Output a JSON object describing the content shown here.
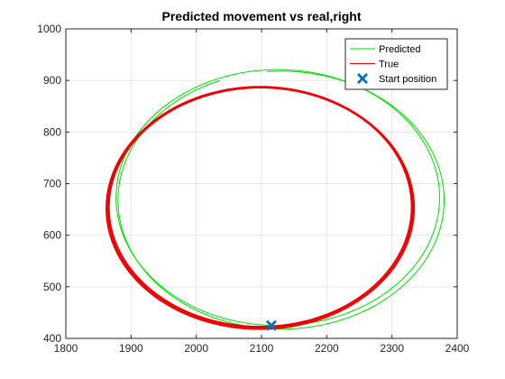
{
  "chart_data": {
    "type": "line",
    "title": "Predicted movement vs real,right",
    "xlabel": "",
    "ylabel": "",
    "xlim": [
      1800,
      2400
    ],
    "ylim": [
      400,
      1000
    ],
    "xticks": [
      1800,
      1900,
      2000,
      2100,
      2200,
      2300,
      2400
    ],
    "yticks": [
      400,
      500,
      600,
      700,
      800,
      900,
      1000
    ],
    "grid": true,
    "legend_position": "top-right",
    "legend": [
      "Predicted",
      "True",
      "Start position"
    ],
    "series": [
      {
        "name": "Predicted",
        "color": "#00dd00",
        "loops": [
          {
            "cx": 2125,
            "cy": 673,
            "rx": 248,
            "ry": 248,
            "start_deg": 95,
            "sweep_deg": 360
          },
          {
            "cx": 2130,
            "cy": 668,
            "rx": 250,
            "ry": 250,
            "start_deg": 95,
            "sweep_deg": 343
          }
        ]
      },
      {
        "name": "True",
        "color": "#ee0000",
        "loops": [
          {
            "cx": 2098,
            "cy": 653,
            "rx": 234,
            "ry": 235
          },
          {
            "cx": 2099,
            "cy": 654,
            "rx": 233,
            "ry": 233
          },
          {
            "cx": 2097,
            "cy": 652,
            "rx": 235,
            "ry": 234
          },
          {
            "cx": 2098,
            "cy": 655,
            "rx": 232,
            "ry": 232
          },
          {
            "cx": 2100,
            "cy": 653,
            "rx": 234,
            "ry": 233
          }
        ]
      }
    ],
    "start_position": {
      "name": "Start position",
      "x": 2115,
      "y": 425,
      "color": "#0072bd"
    }
  }
}
